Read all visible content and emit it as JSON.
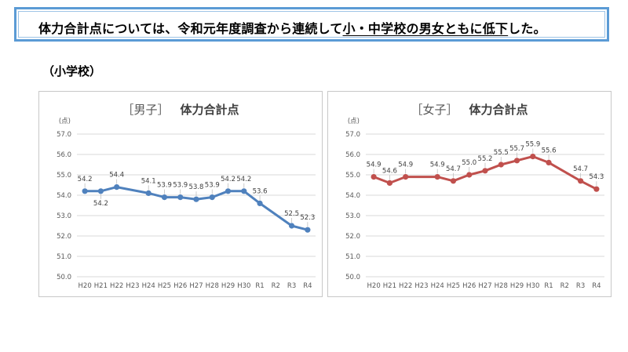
{
  "banner": {
    "text_before": "体力合計点については、令和元年度調査から連続して",
    "text_underlined": "小・中学校の男女ともに低下",
    "text_after": "した。"
  },
  "section_label": "（小学校）",
  "chart_data": [
    {
      "type": "line",
      "title_bracket": "［男子］",
      "title": "体力合計点",
      "ylabel": "(点)",
      "ylim": [
        50.0,
        57.0
      ],
      "yticks": [
        "50.0",
        "51.0",
        "52.0",
        "53.0",
        "54.0",
        "55.0",
        "56.0",
        "57.0"
      ],
      "categories": [
        "H20",
        "H21",
        "H22",
        "H23",
        "H24",
        "H25",
        "H26",
        "H27",
        "H28",
        "H29",
        "H30",
        "R1",
        "R2",
        "R3",
        "R4"
      ],
      "values": [
        54.2,
        54.2,
        54.4,
        null,
        54.1,
        53.9,
        53.9,
        53.8,
        53.9,
        54.2,
        54.2,
        53.6,
        null,
        52.5,
        52.3
      ],
      "labels": [
        "54.2",
        "54.2",
        "54.4",
        "",
        "54.1",
        "53.9",
        "53.9",
        "53.8",
        "53.9",
        "54.2",
        "54.2",
        "53.6",
        "",
        "52.5",
        "52.3"
      ],
      "label_pos": [
        "above",
        "below",
        "above",
        "",
        "above",
        "above",
        "above",
        "above",
        "above",
        "above",
        "above",
        "above",
        "",
        "above",
        "above"
      ],
      "color": "#4f81bd"
    },
    {
      "type": "line",
      "title_bracket": "［女子］",
      "title": "体力合計点",
      "ylabel": "(点)",
      "ylim": [
        50.0,
        57.0
      ],
      "yticks": [
        "50.0",
        "51.0",
        "52.0",
        "53.0",
        "54.0",
        "55.0",
        "56.0",
        "57.0"
      ],
      "categories": [
        "H20",
        "H21",
        "H22",
        "H23",
        "H24",
        "H25",
        "H26",
        "H27",
        "H28",
        "H29",
        "H30",
        "R1",
        "R2",
        "R3",
        "R4"
      ],
      "values": [
        54.9,
        54.6,
        54.9,
        null,
        54.9,
        54.7,
        55.0,
        55.2,
        55.5,
        55.7,
        55.9,
        55.6,
        null,
        54.7,
        54.3
      ],
      "labels": [
        "54.9",
        "54.6",
        "54.9",
        "",
        "54.9",
        "54.7",
        "55.0",
        "55.2",
        "55.5",
        "55.7",
        "55.9",
        "55.6",
        "",
        "54.7",
        "54.3"
      ],
      "label_pos": [
        "above",
        "above",
        "above",
        "",
        "above",
        "above",
        "above",
        "above",
        "above",
        "above",
        "above",
        "above",
        "",
        "above",
        "above"
      ],
      "color": "#c0504d"
    }
  ]
}
